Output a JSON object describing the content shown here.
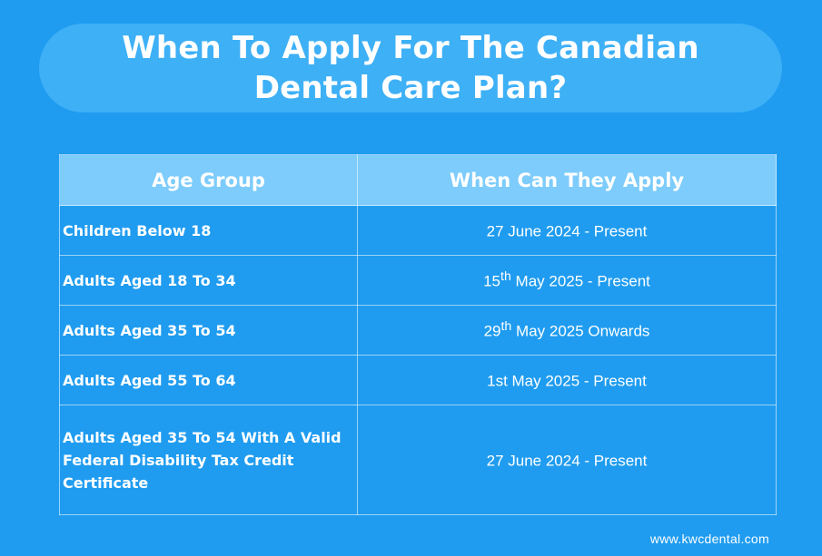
{
  "title": "When To Apply For The Canadian Dental Care Plan?",
  "table": {
    "headers": [
      "Age Group",
      "When Can They Apply"
    ],
    "rows": [
      {
        "age_group": "Children Below 18",
        "when_day": "27 June 2024 - Present",
        "when_sup": "",
        "when_rest": ""
      },
      {
        "age_group": "Adults Aged 18 To 34",
        "when_day": "15",
        "when_sup": "th",
        "when_rest": " May 2025 - Present"
      },
      {
        "age_group": "Adults Aged 35 To 54",
        "when_day": "29",
        "when_sup": "th",
        "when_rest": " May 2025 Onwards"
      },
      {
        "age_group": "Adults Aged 55 To  64",
        "when_day": "1st May 2025 - Present",
        "when_sup": "",
        "when_rest": ""
      },
      {
        "age_group": "Adults Aged 35 To 54 With A Valid Federal Disability Tax Credit Certificate",
        "when_day": "27 June 2024 - Present",
        "when_sup": "",
        "when_rest": ""
      }
    ]
  },
  "footer": "www.kwcdental.com",
  "colors": {
    "background": "#1f9cf0",
    "title_pill": "#3eb0f6",
    "header_row": "#7dccfb",
    "text": "#ffffff"
  }
}
